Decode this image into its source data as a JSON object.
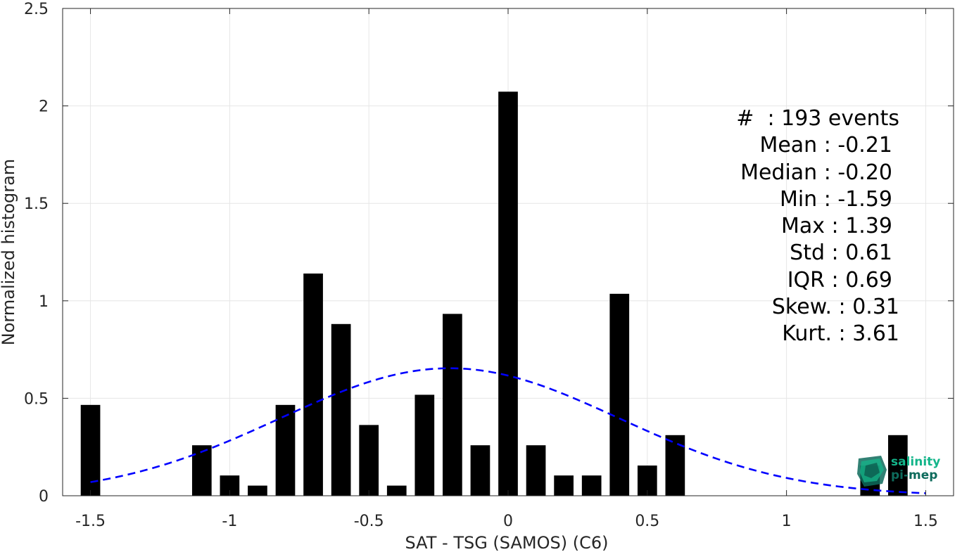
{
  "chart_data": {
    "type": "bar",
    "xlabel": "SAT - TSG (SAMOS) (C6)",
    "ylabel": "Normalized histogram",
    "xlim": [
      -1.6,
      1.6
    ],
    "ylim": [
      0,
      2.5
    ],
    "xticks": [
      -1.5,
      -1,
      -0.5,
      0,
      0.5,
      1,
      1.5
    ],
    "xtick_labels": [
      "-1.5",
      "-1",
      "-0.5",
      "0",
      "0.5",
      "1",
      "1.5"
    ],
    "yticks": [
      0,
      0.5,
      1,
      1.5,
      2,
      2.5
    ],
    "ytick_labels": [
      "0",
      "0.5",
      "1",
      "1.5",
      "2",
      "2.5"
    ],
    "grid": true,
    "bin_width": 0.1,
    "bar_color": "#000000",
    "bars": [
      {
        "x": -1.5,
        "value": 0.466
      },
      {
        "x": -1.1,
        "value": 0.259
      },
      {
        "x": -1.0,
        "value": 0.104
      },
      {
        "x": -0.9,
        "value": 0.052
      },
      {
        "x": -0.8,
        "value": 0.466
      },
      {
        "x": -0.7,
        "value": 1.14
      },
      {
        "x": -0.6,
        "value": 0.881
      },
      {
        "x": -0.5,
        "value": 0.363
      },
      {
        "x": -0.4,
        "value": 0.052
      },
      {
        "x": -0.3,
        "value": 0.518
      },
      {
        "x": -0.2,
        "value": 0.933
      },
      {
        "x": -0.1,
        "value": 0.259
      },
      {
        "x": 0.0,
        "value": 2.073
      },
      {
        "x": 0.1,
        "value": 0.259
      },
      {
        "x": 0.2,
        "value": 0.104
      },
      {
        "x": 0.3,
        "value": 0.104
      },
      {
        "x": 0.4,
        "value": 1.036
      },
      {
        "x": 0.5,
        "value": 0.155
      },
      {
        "x": 0.6,
        "value": 0.311
      },
      {
        "x": 1.3,
        "value": 0.155
      },
      {
        "x": 1.4,
        "value": 0.311
      }
    ],
    "fit": {
      "type": "gaussian",
      "mean": -0.21,
      "std": 0.61,
      "x_range": [
        -1.5,
        1.5
      ],
      "color": "#0000ff",
      "style": "dashed"
    }
  },
  "stats": {
    "events": "#  : 193 events",
    "mean": "Mean : -0.21",
    "median": "Median : -0.20",
    "min": "Min : -1.59",
    "max": "Max : 1.39",
    "std": "Std : 0.61",
    "iqr": "IQR : 0.69",
    "skew": "Skew. : 0.31",
    "kurt": "Kurt. : 3.61"
  },
  "logo": {
    "line1": "salinity",
    "line2": "pi-mep",
    "colors": [
      "#14b58a",
      "#0e6b5c"
    ]
  }
}
